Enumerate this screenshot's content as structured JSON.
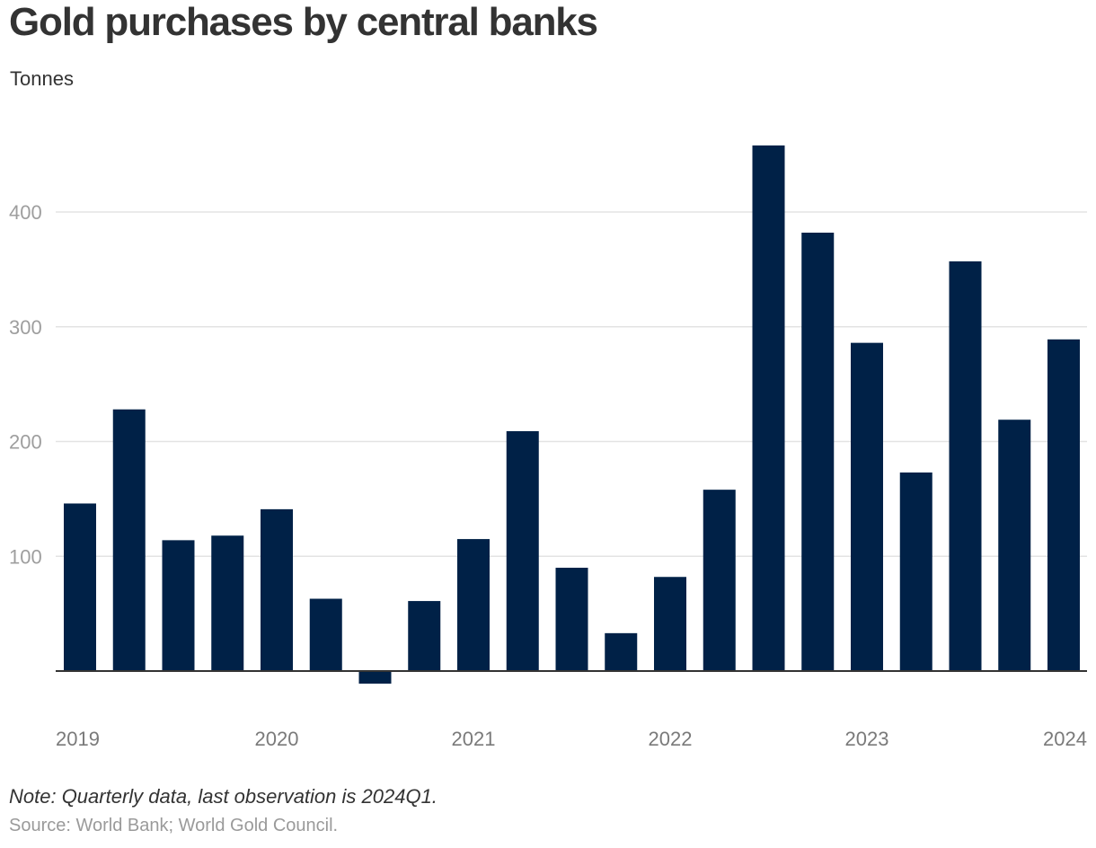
{
  "chart_data": {
    "type": "bar",
    "title": "Gold purchases by central banks",
    "subtitle": "Tonnes",
    "categories": [
      "2019Q1",
      "2019Q2",
      "2019Q3",
      "2019Q4",
      "2020Q1",
      "2020Q2",
      "2020Q3",
      "2020Q4",
      "2021Q1",
      "2021Q2",
      "2021Q3",
      "2021Q4",
      "2022Q1",
      "2022Q2",
      "2022Q3",
      "2022Q4",
      "2023Q1",
      "2023Q2",
      "2023Q3",
      "2023Q4",
      "2024Q1"
    ],
    "values": [
      146,
      228,
      114,
      118,
      141,
      63,
      -11,
      61,
      115,
      209,
      90,
      33,
      82,
      158,
      458,
      382,
      286,
      173,
      357,
      219,
      289
    ],
    "yticks": [
      "100",
      "200",
      "300",
      "400"
    ],
    "ytick_values": [
      100,
      200,
      300,
      400
    ],
    "xtick_labels": [
      "2019",
      "2020",
      "2021",
      "2022",
      "2023",
      "2024"
    ],
    "xtick_positions": [
      0,
      4,
      8,
      12,
      16,
      20
    ],
    "ylim": [
      -30,
      470
    ],
    "xlabel": "",
    "ylabel": "Tonnes",
    "grid": true,
    "bar_color": "#002147",
    "note": "Note: Quarterly data, last observation is 2024Q1.",
    "source": "Source: World Bank; World Gold Council."
  }
}
